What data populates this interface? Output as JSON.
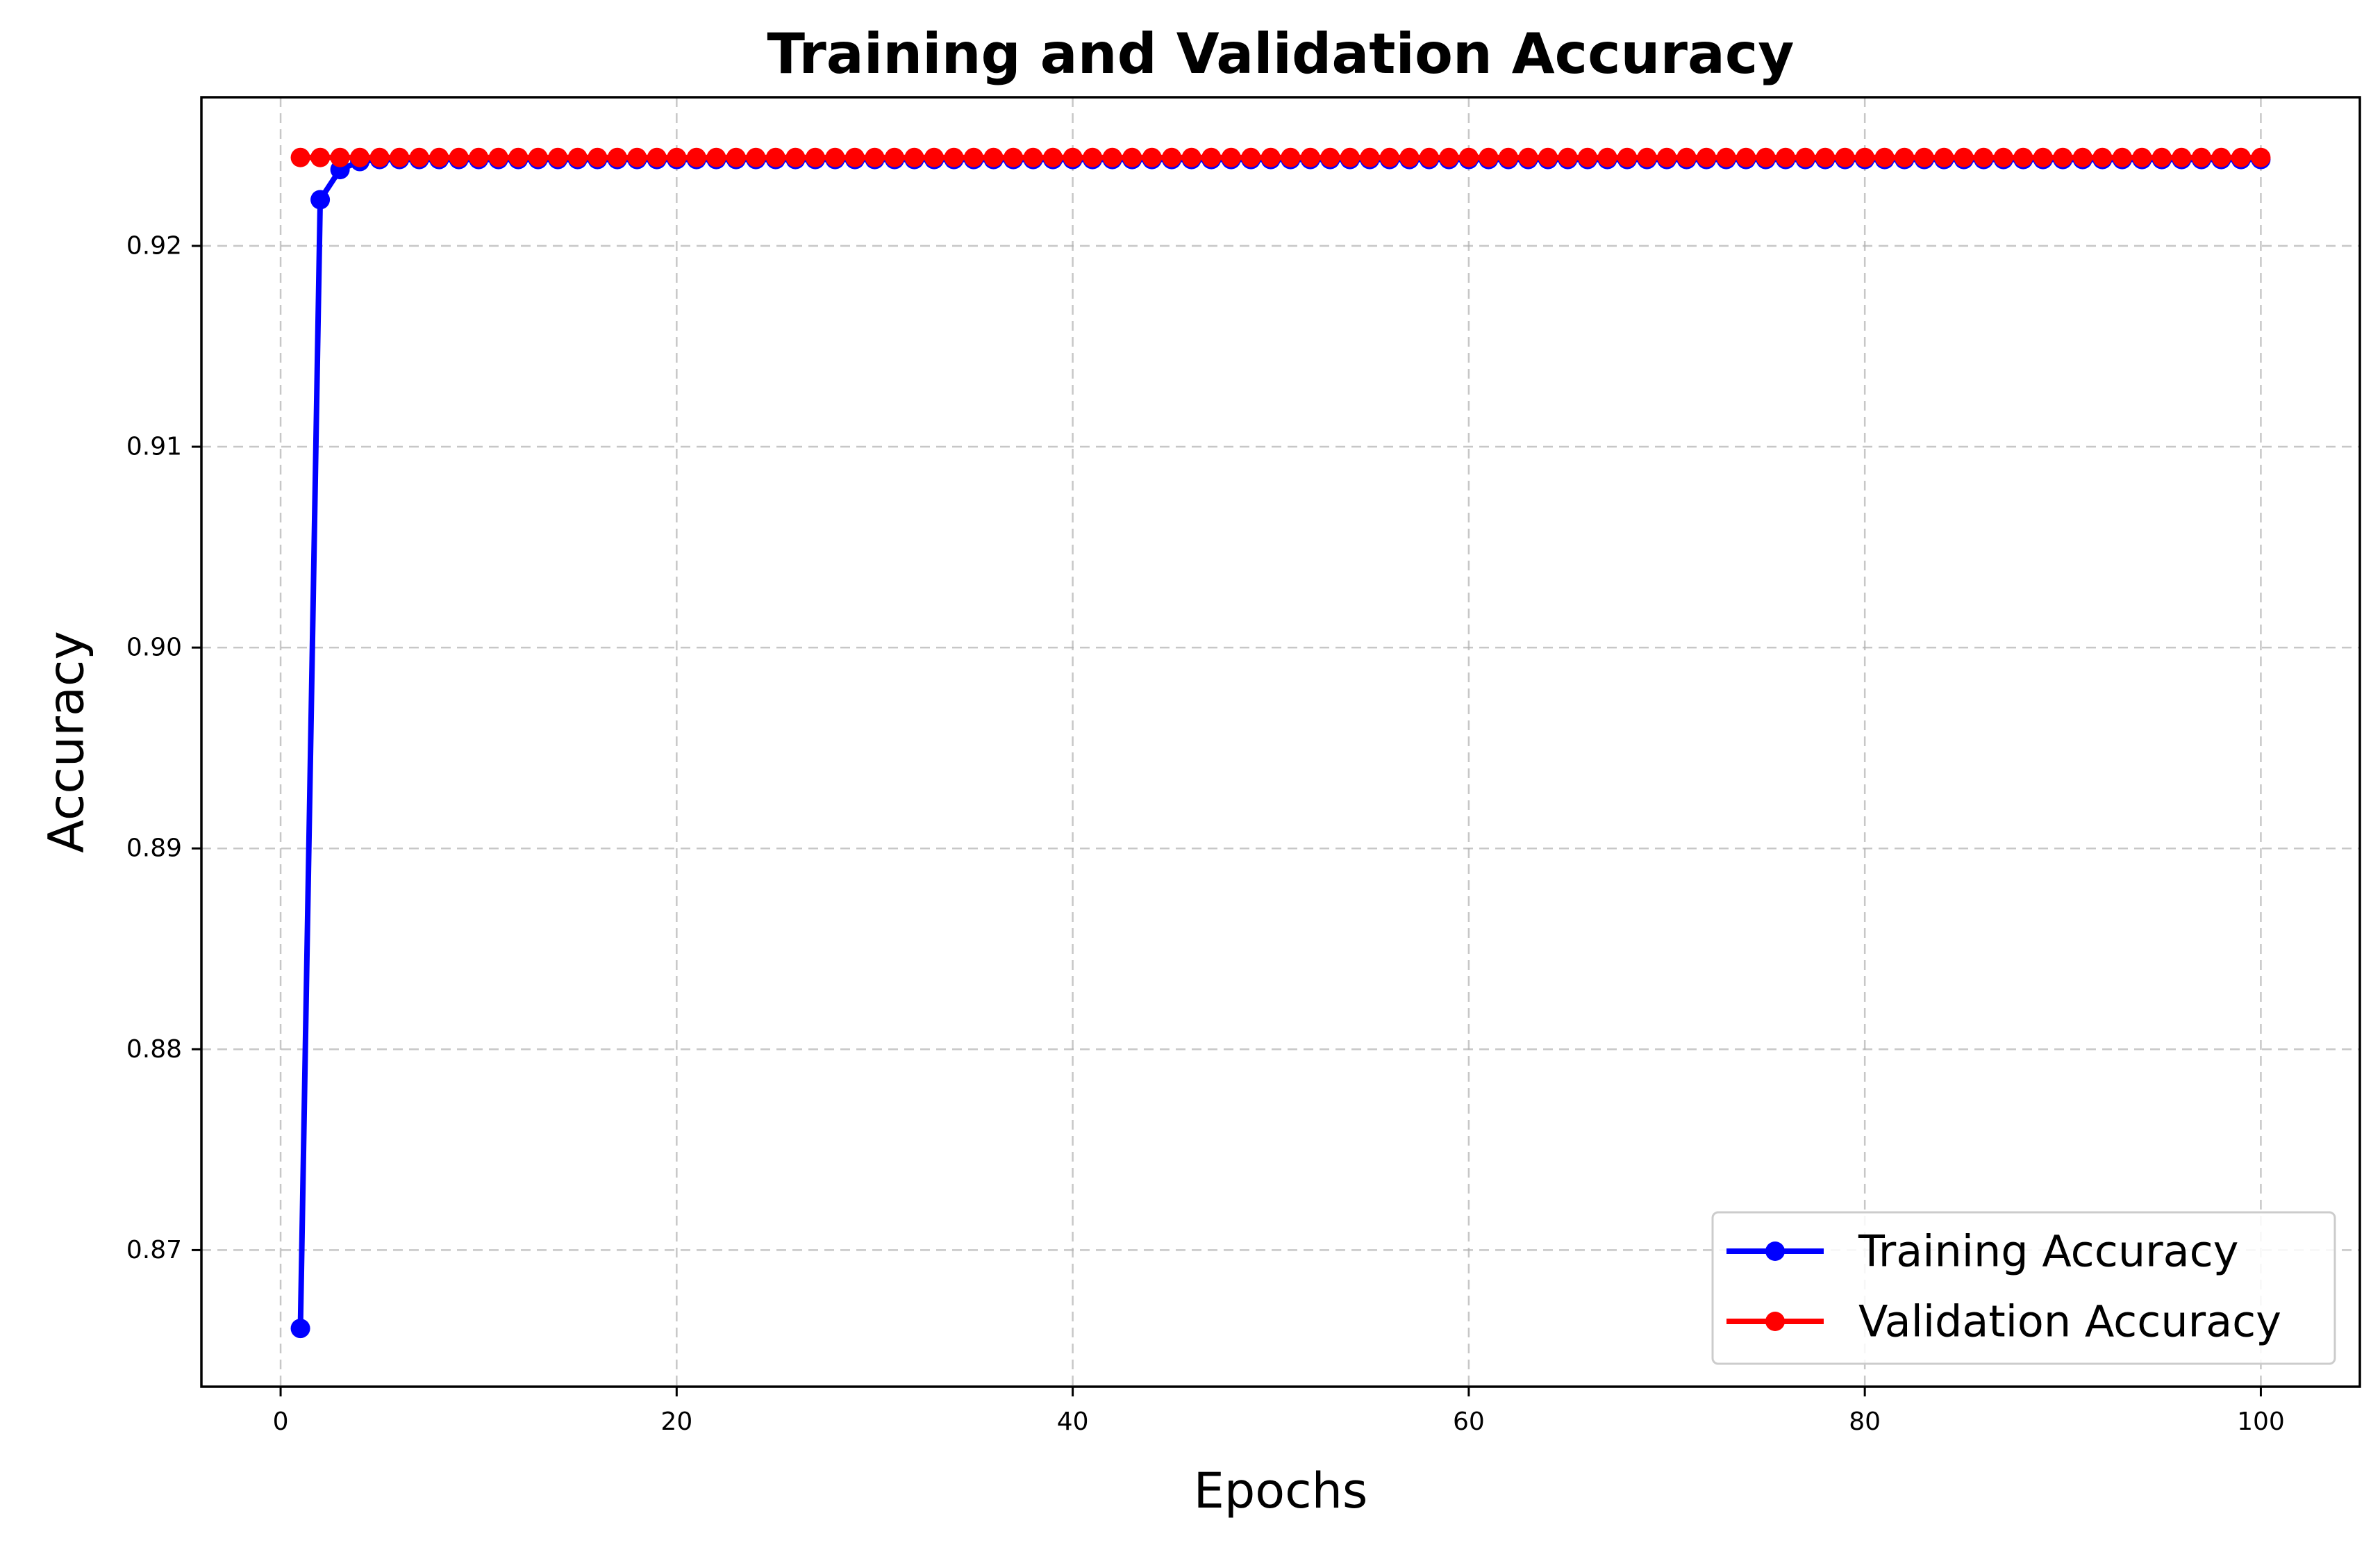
{
  "chart_data": {
    "type": "line",
    "title": "Training and Validation Accuracy",
    "xlabel": "Epochs",
    "ylabel": "Accuracy",
    "xlim": [
      -4,
      105
    ],
    "ylim": [
      0.8632,
      0.9274
    ],
    "x_ticks": [
      0,
      20,
      40,
      60,
      80,
      100
    ],
    "x_tick_labels": [
      "0",
      "20",
      "40",
      "60",
      "80",
      "100"
    ],
    "y_ticks": [
      0.87,
      0.88,
      0.89,
      0.9,
      0.91,
      0.92
    ],
    "y_tick_labels": [
      "0.87",
      "0.88",
      "0.89",
      "0.90",
      "0.91",
      "0.92"
    ],
    "grid": true,
    "legend_position": "bottom-right",
    "x": [
      1,
      2,
      3,
      4,
      5,
      6,
      7,
      8,
      9,
      10,
      11,
      12,
      13,
      14,
      15,
      16,
      17,
      18,
      19,
      20,
      21,
      22,
      23,
      24,
      25,
      26,
      27,
      28,
      29,
      30,
      31,
      32,
      33,
      34,
      35,
      36,
      37,
      38,
      39,
      40,
      41,
      42,
      43,
      44,
      45,
      46,
      47,
      48,
      49,
      50,
      51,
      52,
      53,
      54,
      55,
      56,
      57,
      58,
      59,
      60,
      61,
      62,
      63,
      64,
      65,
      66,
      67,
      68,
      69,
      70,
      71,
      72,
      73,
      74,
      75,
      76,
      77,
      78,
      79,
      80,
      81,
      82,
      83,
      84,
      85,
      86,
      87,
      88,
      89,
      90,
      91,
      92,
      93,
      94,
      95,
      96,
      97,
      98,
      99,
      100
    ],
    "series": [
      {
        "name": "Training Accuracy",
        "color": "#0000ff",
        "first_values": [
          0.8661,
          0.9223,
          0.9238,
          0.9242
        ],
        "plateau_value": 0.9243
      },
      {
        "name": "Validation Accuracy",
        "color": "#ff0000",
        "first_values": [],
        "plateau_value": 0.9244
      }
    ]
  }
}
